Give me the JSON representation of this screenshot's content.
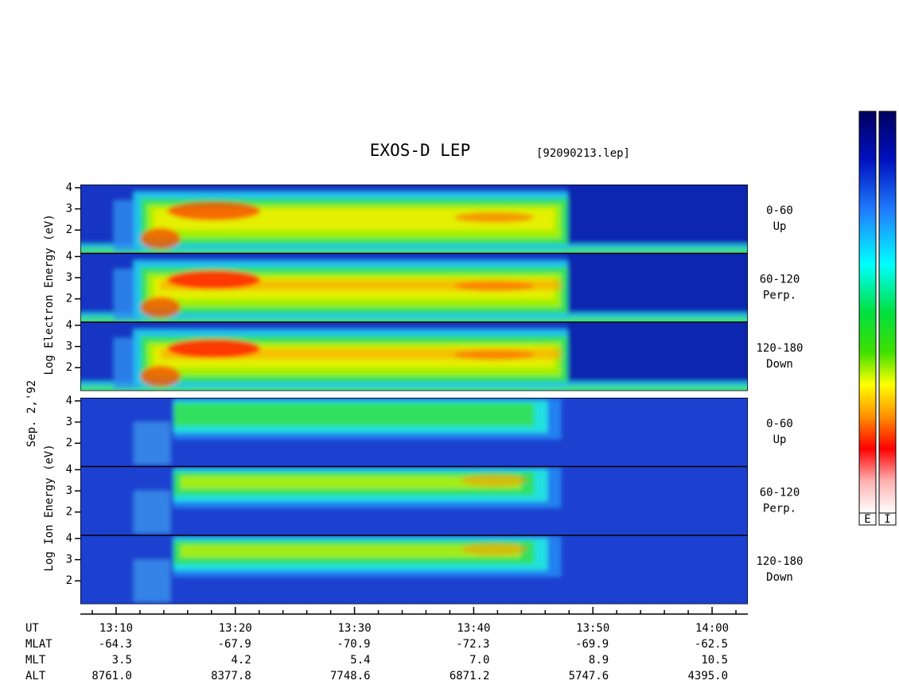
{
  "chart_data": {
    "type": "spectrogram",
    "title": "EXOS-D LEP",
    "file_label": "[92090213.lep]",
    "date_label": "Sep. 2,'92",
    "groups": [
      {
        "axis_label": "Log Electron Energy (eV)",
        "panels": [
          {
            "label": "0-60",
            "sublabel": "Up"
          },
          {
            "label": "60-120",
            "sublabel": "Perp."
          },
          {
            "label": "120-180",
            "sublabel": "Down"
          }
        ]
      },
      {
        "axis_label": "Log Ion Energy (eV)",
        "panels": [
          {
            "label": "0-60",
            "sublabel": "Up"
          },
          {
            "label": "60-120",
            "sublabel": "Perp."
          },
          {
            "label": "120-180",
            "sublabel": "Down"
          }
        ]
      }
    ],
    "ylim": [
      0.9,
      4.15
    ],
    "yticks": [
      2,
      3,
      4
    ],
    "xlim": [
      787,
      843
    ],
    "xticks": [
      {
        "value": 790,
        "label": "13:10"
      },
      {
        "value": 800,
        "label": "13:20"
      },
      {
        "value": 810,
        "label": "13:30"
      },
      {
        "value": 820,
        "label": "13:40"
      },
      {
        "value": 830,
        "label": "13:50"
      },
      {
        "value": 840,
        "label": "14:00"
      }
    ],
    "minor_xticks": [
      788,
      792,
      794,
      796,
      798,
      802,
      804,
      806,
      808,
      812,
      814,
      816,
      818,
      822,
      824,
      826,
      828,
      832,
      834,
      836,
      838,
      842
    ],
    "x_label": "UT",
    "ephemeris": [
      {
        "name": "MLAT",
        "values": [
          "-64.3",
          "-67.9",
          "-70.9",
          "-72.3",
          "-69.9",
          "-62.5"
        ]
      },
      {
        "name": "MLT",
        "values": [
          "3.5",
          "4.2",
          "5.4",
          "7.0",
          "8.9",
          "10.5"
        ]
      },
      {
        "name": "ALT",
        "values": [
          "8761.0",
          "8377.8",
          "7748.6",
          "6871.2",
          "5747.6",
          "4395.0"
        ]
      }
    ],
    "colorbars": [
      "E",
      "I"
    ]
  }
}
